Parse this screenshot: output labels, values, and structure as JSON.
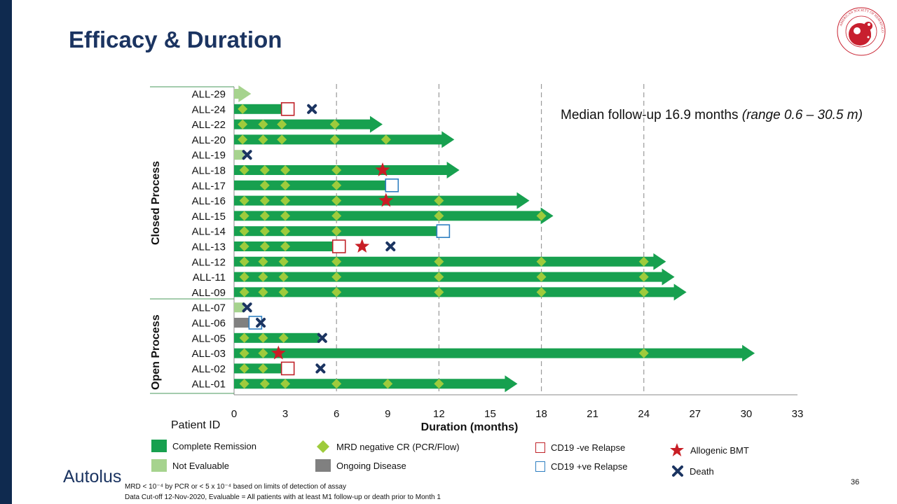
{
  "slide": {
    "title": "Efficacy & Duration",
    "page_number": "36",
    "logo_text": "Autolus",
    "ash_logo_text": "AMERICAN SOCIETY OF HEMATOLOGY",
    "footnote_line1": "MRD < 10⁻⁴ by PCR or < 5 x 10⁻⁴  based on limits of detection of assay",
    "footnote_line2": "Data Cut-off 12-Nov-2020, Evaluable = All patients with at least M1 follow-up or death prior to Month 1",
    "median_followup": "Median follow-up 16.9 months ",
    "median_range": "(range 0.6 – 30.5 m)",
    "patient_id_label": "Patient ID",
    "group_closed": "Closed Process",
    "group_open": "Open Process"
  },
  "legend": {
    "complete_remission": "Complete Remission",
    "not_evaluable": "Not Evaluable",
    "mrd_negative": "MRD negative CR (PCR/Flow)",
    "ongoing_disease": "Ongoing Disease",
    "cd19_neg": "CD19 -ve Relapse",
    "cd19_pos": "CD19 +ve Relapse",
    "allo_bmt": "Allogenic BMT",
    "death": "Death"
  },
  "colors": {
    "cr": "#17a04f",
    "not_evaluable": "#a6d38e",
    "ongoing": "#808080",
    "mrd": "#9ecb3c",
    "cd19_neg": "#c0232a",
    "cd19_pos": "#2f7fc1",
    "bmt": "#c81e25",
    "death": "#1b3461",
    "title": "#1b3461"
  },
  "chart_data": {
    "type": "swimmer",
    "xlabel": "Duration (months)",
    "ylabel": "Patient ID",
    "xlim": [
      0,
      33
    ],
    "xticks": [
      "0",
      "3",
      "6",
      "9",
      "12",
      "15",
      "18",
      "21",
      "24",
      "27",
      "30",
      "33"
    ],
    "reference_lines": [
      6,
      12,
      18,
      24
    ],
    "patients": [
      {
        "id": "ALL-29",
        "group": "closed",
        "bars": [
          {
            "type": "ne",
            "start": 0,
            "end": 1.0,
            "arrow": true
          }
        ],
        "mrd": [],
        "events": []
      },
      {
        "id": "ALL-24",
        "group": "closed",
        "bars": [
          {
            "type": "cr",
            "start": 0,
            "end": 2.9,
            "arrow": false
          }
        ],
        "mrd": [
          0.5
        ],
        "events": [
          {
            "type": "cd19_neg",
            "t": 2.9
          },
          {
            "type": "death",
            "t": 4.4
          }
        ]
      },
      {
        "id": "ALL-22",
        "group": "closed",
        "bars": [
          {
            "type": "cr",
            "start": 0,
            "end": 8.7,
            "arrow": true
          }
        ],
        "mrd": [
          0.5,
          1.7,
          2.8,
          5.9
        ],
        "events": []
      },
      {
        "id": "ALL-20",
        "group": "closed",
        "bars": [
          {
            "type": "cr",
            "start": 0,
            "end": 12.9,
            "arrow": true
          }
        ],
        "mrd": [
          0.5,
          1.7,
          2.8,
          5.9,
          8.9
        ],
        "events": []
      },
      {
        "id": "ALL-19",
        "group": "closed",
        "bars": [
          {
            "type": "ne",
            "start": 0,
            "end": 0.6,
            "arrow": false
          }
        ],
        "mrd": [],
        "events": [
          {
            "type": "death",
            "t": 0.6
          }
        ]
      },
      {
        "id": "ALL-18",
        "group": "closed",
        "bars": [
          {
            "type": "cr",
            "start": 0,
            "end": 13.2,
            "arrow": true
          }
        ],
        "mrd": [
          0.6,
          1.8,
          3.0,
          6.0
        ],
        "events": [
          {
            "type": "bmt",
            "t": 8.7
          }
        ]
      },
      {
        "id": "ALL-17",
        "group": "closed",
        "bars": [
          {
            "type": "cr",
            "start": 0,
            "end": 9.0,
            "arrow": false
          }
        ],
        "mrd": [
          1.8,
          3.0,
          6.0
        ],
        "events": [
          {
            "type": "cd19_pos",
            "t": 9.0
          }
        ]
      },
      {
        "id": "ALL-16",
        "group": "closed",
        "bars": [
          {
            "type": "cr",
            "start": 0,
            "end": 17.3,
            "arrow": true
          }
        ],
        "mrd": [
          0.6,
          1.8,
          3.0,
          6.0,
          12.0
        ],
        "events": [
          {
            "type": "bmt",
            "t": 8.9
          }
        ]
      },
      {
        "id": "ALL-15",
        "group": "closed",
        "bars": [
          {
            "type": "cr",
            "start": 0,
            "end": 18.7,
            "arrow": true
          }
        ],
        "mrd": [
          0.6,
          1.8,
          3.0,
          6.0,
          12.0,
          18.0
        ],
        "events": []
      },
      {
        "id": "ALL-14",
        "group": "closed",
        "bars": [
          {
            "type": "cr",
            "start": 0,
            "end": 12.0,
            "arrow": false
          }
        ],
        "mrd": [
          0.6,
          1.8,
          3.0,
          6.0
        ],
        "events": [
          {
            "type": "cd19_pos",
            "t": 12.0
          }
        ]
      },
      {
        "id": "ALL-13",
        "group": "closed",
        "bars": [
          {
            "type": "cr",
            "start": 0,
            "end": 5.9,
            "arrow": false
          }
        ],
        "mrd": [
          0.6,
          1.8,
          3.0
        ],
        "events": [
          {
            "type": "cd19_neg",
            "t": 5.9
          },
          {
            "type": "bmt",
            "t": 7.5
          },
          {
            "type": "death",
            "t": 9.0
          }
        ]
      },
      {
        "id": "ALL-12",
        "group": "closed",
        "bars": [
          {
            "type": "cr",
            "start": 0,
            "end": 25.3,
            "arrow": true
          }
        ],
        "mrd": [
          0.6,
          1.7,
          2.9,
          6.0,
          12.0,
          18.0,
          24.0
        ],
        "events": []
      },
      {
        "id": "ALL-11",
        "group": "closed",
        "bars": [
          {
            "type": "cr",
            "start": 0,
            "end": 25.8,
            "arrow": true
          }
        ],
        "mrd": [
          0.6,
          1.7,
          2.9,
          6.0,
          12.0,
          18.0,
          24.0
        ],
        "events": []
      },
      {
        "id": "ALL-09",
        "group": "closed",
        "bars": [
          {
            "type": "cr",
            "start": 0,
            "end": 26.5,
            "arrow": true
          }
        ],
        "mrd": [
          0.6,
          1.7,
          2.9,
          6.0,
          12.0,
          18.0,
          24.0
        ],
        "events": []
      },
      {
        "id": "ALL-07",
        "group": "open",
        "bars": [
          {
            "type": "ne",
            "start": 0,
            "end": 0.6,
            "arrow": false
          }
        ],
        "mrd": [],
        "events": [
          {
            "type": "death",
            "t": 0.6
          }
        ]
      },
      {
        "id": "ALL-06",
        "group": "open",
        "bars": [
          {
            "type": "ongoing",
            "start": 0,
            "end": 1.0,
            "arrow": false
          }
        ],
        "mrd": [],
        "events": [
          {
            "type": "cd19_pos",
            "t": 1.0
          },
          {
            "type": "death",
            "t": 1.4
          }
        ]
      },
      {
        "id": "ALL-05",
        "group": "open",
        "bars": [
          {
            "type": "cr",
            "start": 0,
            "end": 5.0,
            "arrow": false
          }
        ],
        "mrd": [
          0.6,
          1.7,
          2.9
        ],
        "events": [
          {
            "type": "death",
            "t": 5.0
          }
        ]
      },
      {
        "id": "ALL-03",
        "group": "open",
        "bars": [
          {
            "type": "cr",
            "start": 0,
            "end": 30.5,
            "arrow": true
          }
        ],
        "mrd": [
          0.6,
          1.7,
          24.0
        ],
        "events": [
          {
            "type": "bmt",
            "t": 2.6
          }
        ]
      },
      {
        "id": "ALL-02",
        "group": "open",
        "bars": [
          {
            "type": "cr",
            "start": 0,
            "end": 2.9,
            "arrow": false
          }
        ],
        "mrd": [
          0.6,
          1.7
        ],
        "events": [
          {
            "type": "cd19_neg",
            "t": 2.9
          },
          {
            "type": "death",
            "t": 4.9
          }
        ]
      },
      {
        "id": "ALL-01",
        "group": "open",
        "bars": [
          {
            "type": "cr",
            "start": 0,
            "end": 16.6,
            "arrow": true
          }
        ],
        "mrd": [
          0.6,
          1.8,
          3.0,
          6.0,
          9.0,
          12.0
        ],
        "events": []
      }
    ]
  }
}
